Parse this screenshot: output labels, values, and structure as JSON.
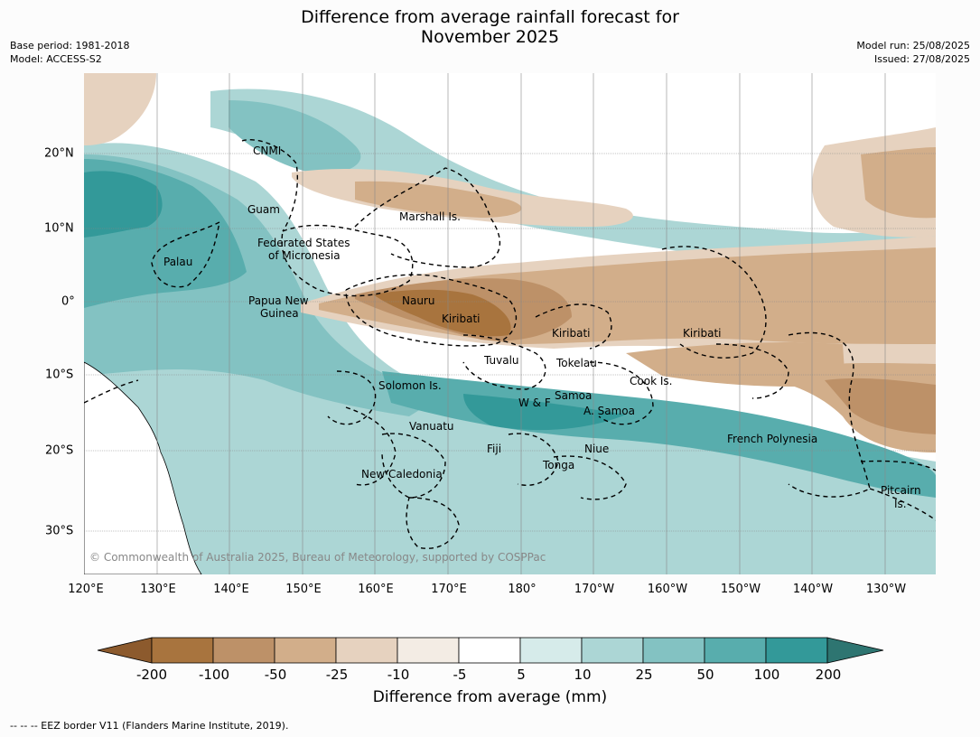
{
  "title_line1": "Difference from average rainfall forecast for",
  "title_line2": "November 2025",
  "base_period": "Base period: 1981-2018",
  "model": "Model: ACCESS-S2",
  "model_run": "Model run: 25/08/2025",
  "issued": "Issued: 27/08/2025",
  "lon_labels": [
    "120°E",
    "130°E",
    "140°E",
    "150°E",
    "160°E",
    "170°E",
    "180°",
    "170°W",
    "160°W",
    "150°W",
    "140°W",
    "130°W"
  ],
  "lat_labels": [
    "20°N",
    "10°N",
    "0°",
    "10°S",
    "20°S",
    "30°S"
  ],
  "places": {
    "cnmi": "CNMI",
    "guam": "Guam",
    "marshall": "Marshall Is.",
    "fsm1": "Federated States",
    "fsm2": "of Micronesia",
    "palau": "Palau",
    "png1": "Papua New",
    "png2": "Guinea",
    "nauru": "Nauru",
    "kiribati1": "Kiribati",
    "kiribati2": "Kiribati",
    "kiribati3": "Kiribati",
    "tuvalu": "Tuvalu",
    "tokelau": "Tokelau",
    "cook": "Cook Is.",
    "solomon": "Solomon Is.",
    "samoa": "Samoa",
    "wf": "W & F",
    "asamoa": "A. Samoa",
    "vanuatu": "Vanuatu",
    "fiji": "Fiji",
    "niue": "Niue",
    "tonga": "Tonga",
    "frpoly": "French Polynesia",
    "newcal": "New Caledonia",
    "pitcairn1": "Pitcairn",
    "pitcairn2": "Is."
  },
  "copyright": "© Commonwealth of Australia 2025, Bureau of Meteorology, supported by COSPPac",
  "colorbar": {
    "labels": [
      "-200",
      "-100",
      "-50",
      "-25",
      "-10",
      "-5",
      "5",
      "10",
      "25",
      "50",
      "100",
      "200"
    ],
    "colors": [
      "#8c5a2d",
      "#a8743e",
      "#bd9168",
      "#d2ae8a",
      "#e6d2bf",
      "#f3ece4",
      "#ffffff",
      "#d6ebea",
      "#acd6d5",
      "#83c2c2",
      "#58adad",
      "#339999",
      "#2e7571"
    ],
    "title": "Difference from average (mm)"
  },
  "footnote": "-- -- -- EEZ border V11 (Flanders Marine Institute, 2019)."
}
